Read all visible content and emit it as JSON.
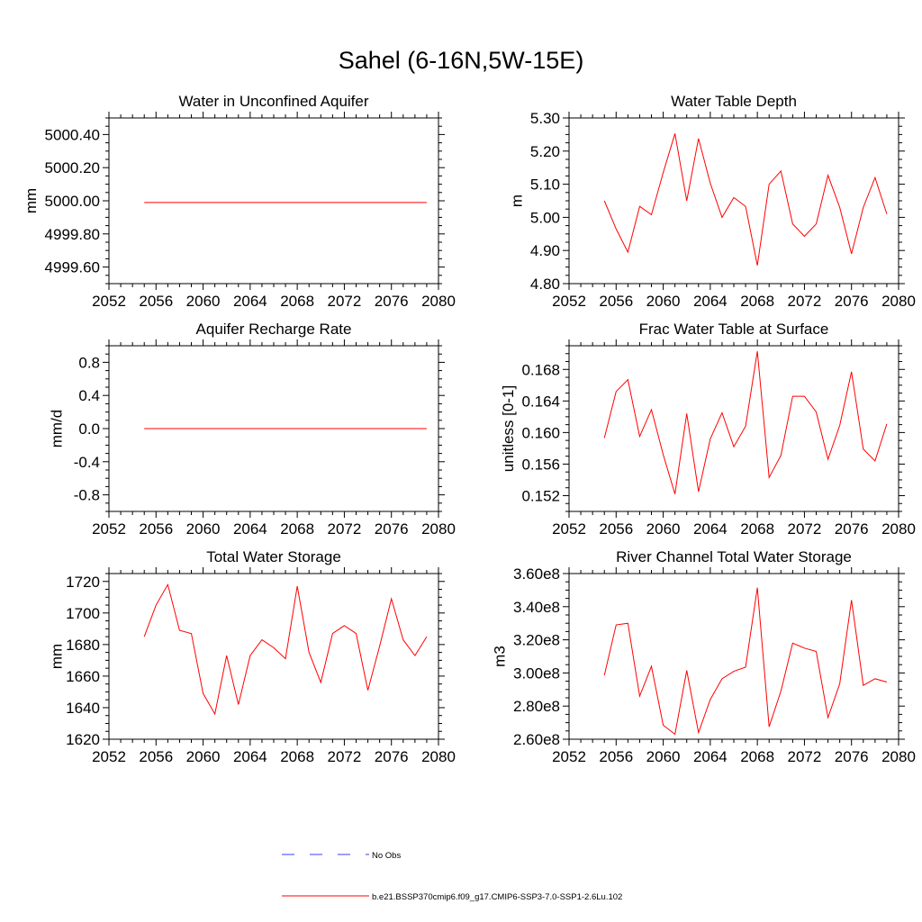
{
  "title": "Sahel (6-16N,5W-15E)",
  "colors": {
    "model": "#ff0000",
    "obs": "#3b3bff",
    "axis": "#000000"
  },
  "chart_data": [
    {
      "type": "line",
      "title": "Water in Unconfined Aquifer",
      "ylabel": "mm",
      "xlim": [
        2052,
        2080
      ],
      "ylim": [
        4999.5,
        5000.5
      ],
      "xticks": [
        2052,
        2056,
        2060,
        2064,
        2068,
        2072,
        2076,
        2080
      ],
      "xtick_labels": [
        "2052",
        "2056",
        "2060",
        "2064",
        "2068",
        "2072",
        "2076",
        "2080"
      ],
      "yticks": [
        4999.6,
        4999.8,
        5000.0,
        5000.2,
        5000.4
      ],
      "ytick_labels": [
        "4999.60",
        "4999.80",
        "5000.00",
        "5000.20",
        "5000.40"
      ],
      "x": [
        2055,
        2056,
        2057,
        2058,
        2059,
        2060,
        2061,
        2062,
        2063,
        2064,
        2065,
        2066,
        2067,
        2068,
        2069,
        2070,
        2071,
        2072,
        2073,
        2074,
        2075,
        2076,
        2077,
        2078,
        2079
      ],
      "series": [
        {
          "values": [
            4999.99,
            4999.99,
            4999.99,
            4999.99,
            4999.99,
            4999.99,
            4999.99,
            4999.99,
            4999.99,
            4999.99,
            4999.99,
            4999.99,
            4999.99,
            4999.99,
            4999.99,
            4999.99,
            4999.99,
            4999.99,
            4999.99,
            4999.99,
            4999.99,
            4999.99,
            4999.99,
            4999.99,
            4999.99
          ]
        }
      ]
    },
    {
      "type": "line",
      "title": "Water Table Depth",
      "ylabel": "m",
      "xlim": [
        2052,
        2080
      ],
      "ylim": [
        4.8,
        5.3
      ],
      "xticks": [
        2052,
        2056,
        2060,
        2064,
        2068,
        2072,
        2076,
        2080
      ],
      "xtick_labels": [
        "2052",
        "2056",
        "2060",
        "2064",
        "2068",
        "2072",
        "2076",
        "2080"
      ],
      "yticks": [
        4.8,
        4.9,
        5.0,
        5.1,
        5.2,
        5.3
      ],
      "ytick_labels": [
        "4.80",
        "4.90",
        "5.00",
        "5.10",
        "5.20",
        "5.30"
      ],
      "x": [
        2055,
        2056,
        2057,
        2058,
        2059,
        2060,
        2061,
        2062,
        2063,
        2064,
        2065,
        2066,
        2067,
        2068,
        2069,
        2070,
        2071,
        2072,
        2073,
        2074,
        2075,
        2076,
        2077,
        2078,
        2079
      ],
      "series": [
        {
          "values": [
            5.05,
            4.965,
            4.895,
            5.033,
            5.008,
            5.135,
            5.253,
            5.05,
            5.238,
            5.103,
            5.0,
            5.06,
            5.033,
            4.855,
            5.1,
            5.14,
            4.98,
            4.943,
            4.98,
            5.127,
            5.03,
            4.89,
            5.03,
            5.12,
            5.01
          ]
        }
      ]
    },
    {
      "type": "line",
      "title": "Aquifer Recharge Rate",
      "ylabel": "mm/d",
      "xlim": [
        2052,
        2080
      ],
      "ylim": [
        -1.0,
        1.0
      ],
      "xticks": [
        2052,
        2056,
        2060,
        2064,
        2068,
        2072,
        2076,
        2080
      ],
      "xtick_labels": [
        "2052",
        "2056",
        "2060",
        "2064",
        "2068",
        "2072",
        "2076",
        "2080"
      ],
      "yticks": [
        -0.8,
        -0.4,
        0.0,
        0.4,
        0.8
      ],
      "ytick_labels": [
        "-0.8",
        "-0.4",
        "0.0",
        "0.4",
        "0.8"
      ],
      "x": [
        2055,
        2056,
        2057,
        2058,
        2059,
        2060,
        2061,
        2062,
        2063,
        2064,
        2065,
        2066,
        2067,
        2068,
        2069,
        2070,
        2071,
        2072,
        2073,
        2074,
        2075,
        2076,
        2077,
        2078,
        2079
      ],
      "series": [
        {
          "values": [
            0,
            0,
            0,
            0,
            0,
            0,
            0,
            0,
            0,
            0,
            0,
            0,
            0,
            0,
            0,
            0,
            0,
            0,
            0,
            0,
            0,
            0,
            0,
            0,
            0
          ]
        }
      ]
    },
    {
      "type": "line",
      "title": "Frac Water Table at Surface",
      "ylabel": "unitless [0-1]",
      "xlim": [
        2052,
        2080
      ],
      "ylim": [
        0.15,
        0.171
      ],
      "xticks": [
        2052,
        2056,
        2060,
        2064,
        2068,
        2072,
        2076,
        2080
      ],
      "xtick_labels": [
        "2052",
        "2056",
        "2060",
        "2064",
        "2068",
        "2072",
        "2076",
        "2080"
      ],
      "yticks": [
        0.152,
        0.156,
        0.16,
        0.164,
        0.168
      ],
      "ytick_labels": [
        "0.152",
        "0.156",
        "0.160",
        "0.164",
        "0.168"
      ],
      "x": [
        2055,
        2056,
        2057,
        2058,
        2059,
        2060,
        2061,
        2062,
        2063,
        2064,
        2065,
        2066,
        2067,
        2068,
        2069,
        2070,
        2071,
        2072,
        2073,
        2074,
        2075,
        2076,
        2077,
        2078,
        2079
      ],
      "series": [
        {
          "values": [
            0.1593,
            0.1652,
            0.1667,
            0.1595,
            0.1629,
            0.1572,
            0.1522,
            0.1624,
            0.1525,
            0.1592,
            0.1625,
            0.1582,
            0.1608,
            0.1703,
            0.1543,
            0.1571,
            0.1646,
            0.1646,
            0.1626,
            0.1566,
            0.1609,
            0.1677,
            0.1579,
            0.1564,
            0.1611
          ]
        }
      ]
    },
    {
      "type": "line",
      "title": "Total Water Storage",
      "ylabel": "mm",
      "xlim": [
        2052,
        2080
      ],
      "ylim": [
        1620,
        1725
      ],
      "xticks": [
        2052,
        2056,
        2060,
        2064,
        2068,
        2072,
        2076,
        2080
      ],
      "xtick_labels": [
        "2052",
        "2056",
        "2060",
        "2064",
        "2068",
        "2072",
        "2076",
        "2080"
      ],
      "yticks": [
        1620,
        1640,
        1660,
        1680,
        1700,
        1720
      ],
      "ytick_labels": [
        "1620",
        "1640",
        "1660",
        "1680",
        "1700",
        "1720"
      ],
      "x": [
        2055,
        2056,
        2057,
        2058,
        2059,
        2060,
        2061,
        2062,
        2063,
        2064,
        2065,
        2066,
        2067,
        2068,
        2069,
        2070,
        2071,
        2072,
        2073,
        2074,
        2075,
        2076,
        2077,
        2078,
        2079
      ],
      "series": [
        {
          "values": [
            1685,
            1705,
            1718,
            1689,
            1687,
            1649,
            1636,
            1673,
            1642,
            1673,
            1683,
            1678,
            1671,
            1717,
            1675,
            1656,
            1687,
            1692,
            1687,
            1651,
            1679,
            1709,
            1683,
            1673,
            1685
          ]
        }
      ]
    },
    {
      "type": "line",
      "title": "River Channel Total Water Storage",
      "ylabel": "m3",
      "xlim": [
        2052,
        2080
      ],
      "ylim": [
        260000000,
        360000000
      ],
      "xticks": [
        2052,
        2056,
        2060,
        2064,
        2068,
        2072,
        2076,
        2080
      ],
      "xtick_labels": [
        "2052",
        "2056",
        "2060",
        "2064",
        "2068",
        "2072",
        "2076",
        "2080"
      ],
      "yticks": [
        260000000,
        280000000,
        300000000,
        320000000,
        340000000,
        360000000
      ],
      "ytick_labels": [
        "2.60e8",
        "2.80e8",
        "3.00e8",
        "3.20e8",
        "3.40e8",
        "3.60e8"
      ],
      "x": [
        2055,
        2056,
        2057,
        2058,
        2059,
        2060,
        2061,
        2062,
        2063,
        2064,
        2065,
        2066,
        2067,
        2068,
        2069,
        2070,
        2071,
        2072,
        2073,
        2074,
        2075,
        2076,
        2077,
        2078,
        2079
      ],
      "series": [
        {
          "values": [
            298500000,
            329000000,
            330000000,
            286000000,
            304000000,
            268500000,
            263000000,
            301500000,
            264000000,
            284000000,
            296500000,
            301000000,
            303500000,
            351500000,
            267500000,
            289000000,
            318000000,
            315000000,
            313000000,
            273000000,
            293500000,
            344000000,
            292500000,
            296500000,
            294500000
          ]
        }
      ]
    }
  ],
  "legend": [
    {
      "label": "No Obs",
      "style": "dashed",
      "color": "#3b3bff"
    },
    {
      "label": "b.e21.BSSP370cmip6.f09_g17.CMIP6-SSP3-7.0-SSP1-2.6Lu.102",
      "style": "solid",
      "color": "#ff0000"
    }
  ]
}
